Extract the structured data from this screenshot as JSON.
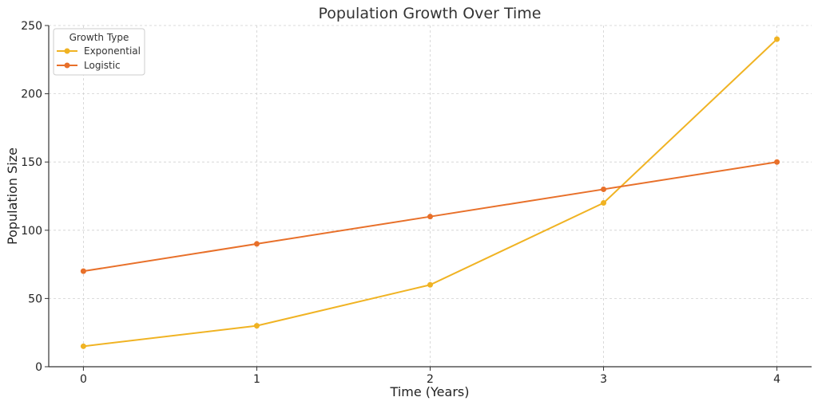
{
  "chart_data": {
    "type": "line",
    "title": "Population Growth Over Time",
    "xlabel": "Time (Years)",
    "ylabel": "Population Size",
    "x": [
      0,
      1,
      2,
      3,
      4
    ],
    "xticks": [
      "0",
      "1",
      "2",
      "3",
      "4"
    ],
    "xlim": [
      -0.2,
      4.2
    ],
    "ylim": [
      0,
      250
    ],
    "yticks": [
      0,
      50,
      100,
      150,
      200,
      250
    ],
    "grid": true,
    "legend": {
      "title": "Growth Type",
      "position": "top-left"
    },
    "series": [
      {
        "name": "Exponential",
        "color": "#f0b323",
        "values": [
          15,
          30,
          60,
          120,
          240
        ]
      },
      {
        "name": "Logistic",
        "color": "#e8702a",
        "values": [
          70,
          90,
          110,
          130,
          150
        ]
      }
    ]
  }
}
